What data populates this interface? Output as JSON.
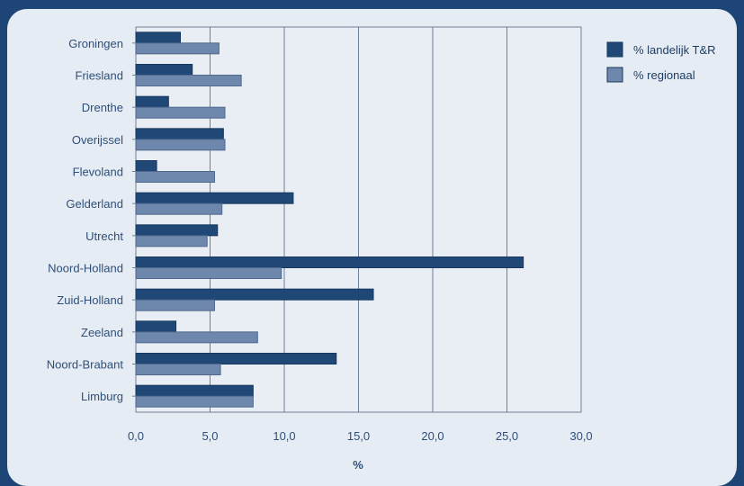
{
  "chart_data": {
    "type": "bar",
    "orientation": "horizontal",
    "categories": [
      "Groningen",
      "Friesland",
      "Drenthe",
      "Overijssel",
      "Flevoland",
      "Gelderland",
      "Utrecht",
      "Noord-Holland",
      "Zuid-Holland",
      "Zeeland",
      "Noord-Brabant",
      "Limburg"
    ],
    "series": [
      {
        "name": "% landelijk T&R",
        "color": "#1f4877",
        "values": [
          3.0,
          3.8,
          2.2,
          5.9,
          1.4,
          10.6,
          5.5,
          26.1,
          16.0,
          2.7,
          13.5,
          7.9
        ]
      },
      {
        "name": "% regionaal",
        "color": "#6d87ad",
        "values": [
          5.6,
          7.1,
          6.0,
          6.0,
          5.3,
          5.8,
          4.8,
          9.8,
          5.3,
          8.2,
          5.7,
          7.9
        ]
      }
    ],
    "xlabel": "%",
    "xlim": [
      0,
      30
    ],
    "xticks": [
      "0,0",
      "5,0",
      "10,0",
      "15,0",
      "20,0",
      "25,0",
      "30,0"
    ],
    "grid": true,
    "legend_position": "right"
  }
}
